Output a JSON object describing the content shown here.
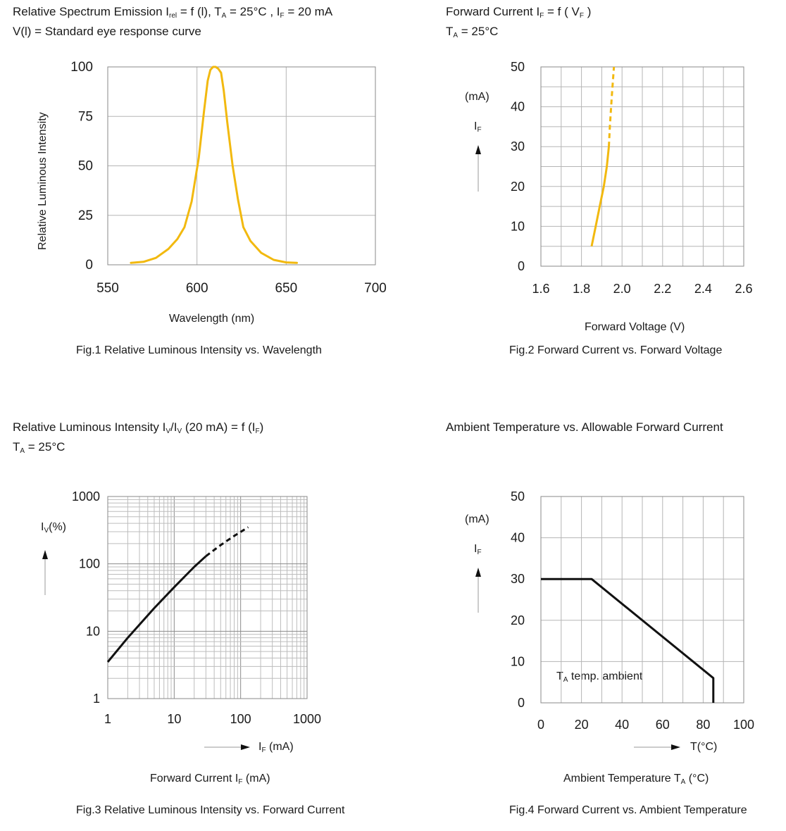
{
  "chart_data": [
    {
      "type": "line",
      "header_line1": "Relative Spectrum Emission I",
      "header_line1_sub": "rel",
      "header_line1_rest": " = f (l), T",
      "header_line1_sub2": "A",
      "header_line1_rest2": " = 25°C , I",
      "header_line1_sub3": "F",
      "header_line1_rest3": " = 20  mA",
      "header_line2": "V(l) = Standard eye response curve",
      "title": "Fig.1 Relative Luminous Intensity vs. Wavelength",
      "xlabel": "Wavelength (nm)",
      "ylabel": "Relative Luminous Intensity",
      "xlim": [
        550,
        700
      ],
      "ylim": [
        0,
        100
      ],
      "xticks": [
        "550",
        "600",
        "650",
        "700"
      ],
      "yticks": [
        "0",
        "25",
        "50",
        "75",
        "100"
      ],
      "grid": true,
      "color": "#f2b90f",
      "series": [
        {
          "x": [
            563,
            570,
            577,
            584,
            589,
            593,
            597,
            601,
            604,
            606,
            607.5,
            609,
            610.5,
            612,
            613.5,
            615,
            617,
            620,
            623,
            626,
            630,
            636,
            643,
            650,
            656
          ],
          "y": [
            1,
            1.5,
            3.5,
            8,
            13,
            19,
            32,
            54,
            78,
            93,
            98.5,
            100,
            100,
            99,
            97,
            88,
            72,
            50,
            33,
            19,
            12,
            6,
            2.5,
            1.2,
            1
          ]
        }
      ]
    },
    {
      "type": "line",
      "header_line1": "Forward Current I",
      "header_line1_sub": "F",
      "header_line1_rest": " = f ( V",
      "header_line1_sub2": "F",
      "header_line1_rest2": " )",
      "header_line2": "T",
      "header_line2_sub": "A",
      "header_line2_rest": " = 25°C",
      "title": "Fig.2 Forward Current vs. Forward Voltage",
      "xlabel": "Forward Voltage (V)",
      "ylabel_unit": "(mA)",
      "ylabel": "I",
      "ylabel_sub": "F",
      "xlim": [
        1.6,
        2.6
      ],
      "ylim": [
        0,
        50
      ],
      "xticks": [
        "1.6",
        "1.8",
        "2.0",
        "2.2",
        "2.4",
        "2.6"
      ],
      "yticks": [
        "0",
        "10",
        "20",
        "30",
        "40",
        "50"
      ],
      "grid": true,
      "color": "#f2b90f",
      "series": [
        {
          "style": "solid",
          "x": [
            1.85,
            1.87,
            1.89,
            1.91,
            1.925,
            1.935
          ],
          "y": [
            5,
            10,
            15,
            20,
            25,
            30
          ]
        },
        {
          "style": "dashed",
          "x": [
            1.935,
            1.94,
            1.95,
            1.96
          ],
          "y": [
            30,
            35,
            43,
            50
          ]
        }
      ]
    },
    {
      "type": "line",
      "header_line1": "Relative Luminous Intensity I",
      "header_line1_sub": "V",
      "header_line1_rest": "/I",
      "header_line1_sub2": "V",
      "header_line1_rest2": " (20 mA) = f (I",
      "header_line1_sub3": "F",
      "header_line1_rest3": ")",
      "header_line2": "T",
      "header_line2_sub": "A",
      "header_line2_rest": " = 25°C",
      "title": "Fig.3 Relative Luminous Intensity vs. Forward Current",
      "xlabel": "Forward Current I",
      "xlabel_sub": "F",
      "xlabel_rest": " (mA)",
      "arrow_label": "I",
      "arrow_label_sub": "F",
      "arrow_label_rest": " (mA)",
      "ylabel": "I",
      "ylabel_sub": "V",
      "ylabel_rest": "(%)",
      "xscale": "log",
      "yscale": "log",
      "xlim": [
        1,
        1000
      ],
      "ylim": [
        1,
        1000
      ],
      "xticks": [
        "1",
        "10",
        "100",
        "1000"
      ],
      "yticks": [
        "1",
        "10",
        "100",
        "1000"
      ],
      "grid": true,
      "color": "#111111",
      "series": [
        {
          "style": "solid",
          "x": [
            1,
            2,
            5,
            10,
            20,
            30
          ],
          "y": [
            3.5,
            8,
            22,
            45,
            90,
            130
          ]
        },
        {
          "style": "dashed",
          "x": [
            30,
            50,
            80,
            130
          ],
          "y": [
            130,
            190,
            260,
            350
          ]
        }
      ]
    },
    {
      "type": "line",
      "header_line1": "Ambient Temperature vs. Allowable Forward Current",
      "title": "Fig.4 Forward Current vs. Ambient Temperature",
      "xlabel": "Ambient Temperature T",
      "xlabel_sub": "A",
      "xlabel_rest": " (°C)",
      "arrow_label": "T(°C)",
      "ylabel_unit": "(mA)",
      "ylabel": "I",
      "ylabel_sub": "F",
      "annotation": "T",
      "annotation_sub": "A",
      "annotation_rest": " temp. ambient",
      "xlim": [
        0,
        100
      ],
      "ylim": [
        0,
        50
      ],
      "xticks": [
        "0",
        "20",
        "40",
        "60",
        "80",
        "100"
      ],
      "yticks": [
        "0",
        "10",
        "20",
        "30",
        "40",
        "50"
      ],
      "grid": true,
      "color": "#111111",
      "series": [
        {
          "style": "solid",
          "x": [
            0,
            25,
            85,
            85
          ],
          "y": [
            30,
            30,
            6,
            0
          ]
        }
      ]
    }
  ]
}
